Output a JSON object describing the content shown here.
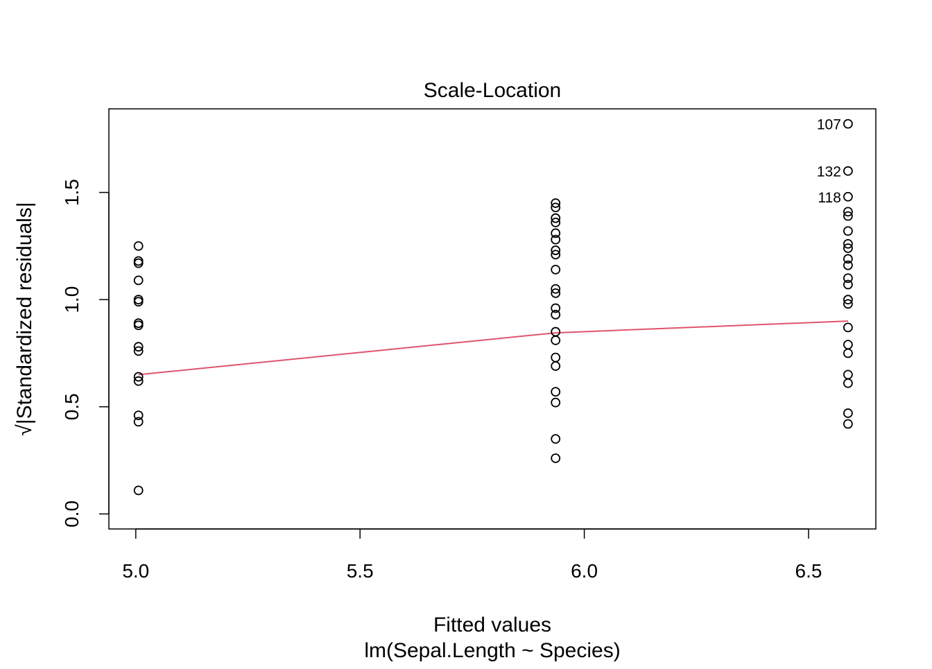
{
  "chart_data": {
    "type": "scatter",
    "title": "Scale-Location",
    "xlabel": "Fitted values",
    "subtitle": "lm(Sepal.Length ~ Species)",
    "ylabel": "√|Standardized residuals|",
    "xlim": [
      4.94,
      6.65
    ],
    "ylim": [
      -0.07,
      1.89
    ],
    "x_ticks": [
      "5.0",
      "5.5",
      "6.0",
      "6.5"
    ],
    "y_ticks": [
      "0.0",
      "0.5",
      "1.0",
      "1.5"
    ],
    "grid": false,
    "box": true,
    "series": [
      {
        "marker": "open-circle",
        "color": "#000000",
        "groups": [
          {
            "x": 5.006,
            "y": [
              1.25,
              1.18,
              1.17,
              1.09,
              1.0,
              0.99,
              0.89,
              0.88,
              0.78,
              0.76,
              0.64,
              0.62,
              0.46,
              0.43,
              0.11
            ]
          },
          {
            "x": 5.936,
            "y": [
              1.45,
              1.43,
              1.38,
              1.36,
              1.31,
              1.28,
              1.23,
              1.21,
              1.14,
              1.05,
              1.03,
              0.96,
              0.93,
              0.85,
              0.81,
              0.73,
              0.69,
              0.57,
              0.52,
              0.35,
              0.26
            ]
          },
          {
            "x": 6.588,
            "y": [
              1.82,
              1.6,
              1.48,
              1.41,
              1.39,
              1.32,
              1.26,
              1.24,
              1.19,
              1.16,
              1.1,
              1.07,
              1.0,
              0.98,
              0.87,
              0.79,
              0.75,
              0.65,
              0.61,
              0.47,
              0.42
            ]
          }
        ]
      }
    ],
    "smoother": {
      "color": "#DF536B",
      "x": [
        5.006,
        5.936,
        6.588
      ],
      "y": [
        0.65,
        0.845,
        0.9
      ]
    },
    "annotations": [
      {
        "label": "107",
        "x": 6.588,
        "y": 1.82
      },
      {
        "label": "132",
        "x": 6.588,
        "y": 1.6
      },
      {
        "label": "118",
        "x": 6.588,
        "y": 1.48
      }
    ]
  }
}
